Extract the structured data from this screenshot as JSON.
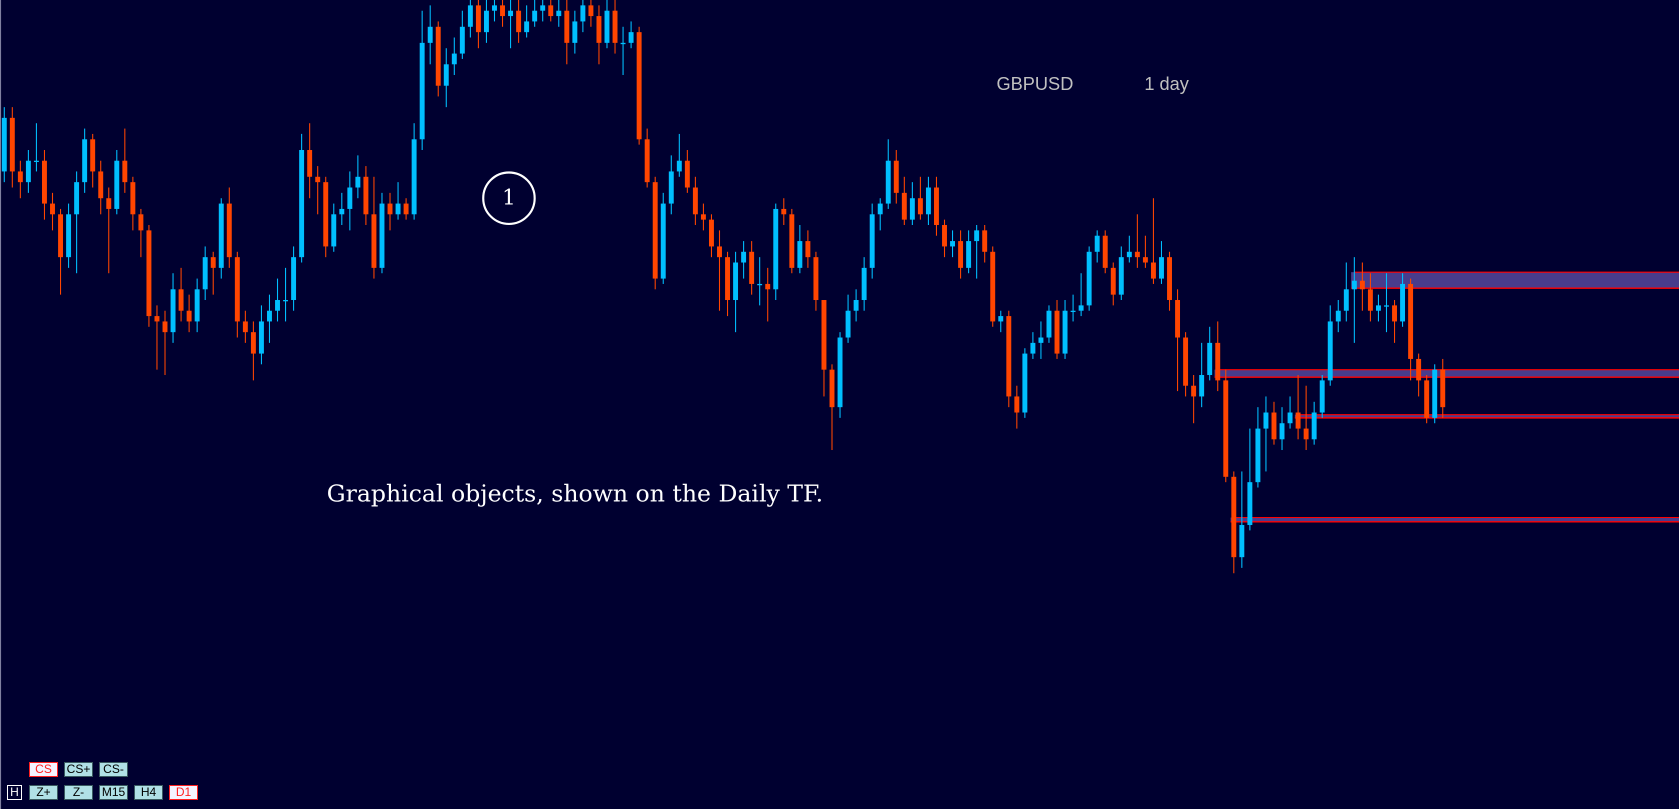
{
  "header": {
    "symbol": "GBPUSD",
    "timeframe": "1 day"
  },
  "annotation": {
    "marker_label": "1",
    "caption": "Graphical objects, shown on the Daily TF."
  },
  "buttons": {
    "row1": [
      {
        "label": "CS",
        "active": true
      },
      {
        "label": "CS+",
        "active": false
      },
      {
        "label": "CS-",
        "active": false
      }
    ],
    "row2": [
      {
        "label": "H",
        "active": false
      },
      {
        "label": "Z+",
        "active": false
      },
      {
        "label": "Z-",
        "active": false
      },
      {
        "label": "M15",
        "active": false
      },
      {
        "label": "H4",
        "active": false
      },
      {
        "label": "D1",
        "active": true
      }
    ]
  },
  "colors": {
    "background": "#000030",
    "bull": "#00bfff",
    "bear": "#ff4500",
    "zone_fill": "#483c8c",
    "zone_line": "#ff0000",
    "text": "#c0c0c0"
  },
  "chart_data": {
    "type": "candlestick",
    "title": "",
    "xlabel": "",
    "ylabel": "",
    "grid": false,
    "ylim": [
      1.3245,
      1.4
    ],
    "candles": [
      [
        1.384,
        1.39,
        1.383,
        1.389
      ],
      [
        1.389,
        1.39,
        1.3825,
        1.384
      ],
      [
        1.384,
        1.385,
        1.3815,
        1.383
      ],
      [
        1.383,
        1.386,
        1.382,
        1.385
      ],
      [
        1.385,
        1.3885,
        1.384,
        1.385
      ],
      [
        1.385,
        1.386,
        1.3795,
        1.381
      ],
      [
        1.381,
        1.382,
        1.3785,
        1.38
      ],
      [
        1.38,
        1.3805,
        1.3725,
        1.376
      ],
      [
        1.376,
        1.381,
        1.375,
        1.38
      ],
      [
        1.38,
        1.384,
        1.3745,
        1.383
      ],
      [
        1.383,
        1.388,
        1.382,
        1.387
      ],
      [
        1.387,
        1.3875,
        1.3825,
        1.384
      ],
      [
        1.384,
        1.385,
        1.38,
        1.3815
      ],
      [
        1.3815,
        1.3825,
        1.3745,
        1.3805
      ],
      [
        1.3805,
        1.386,
        1.38,
        1.385
      ],
      [
        1.385,
        1.388,
        1.382,
        1.383
      ],
      [
        1.383,
        1.3835,
        1.3785,
        1.38
      ],
      [
        1.38,
        1.3805,
        1.376,
        1.3785
      ],
      [
        1.3785,
        1.379,
        1.3695,
        1.3705
      ],
      [
        1.3705,
        1.3715,
        1.3655,
        1.37
      ],
      [
        1.37,
        1.371,
        1.365,
        1.369
      ],
      [
        1.369,
        1.3745,
        1.368,
        1.373
      ],
      [
        1.373,
        1.375,
        1.37,
        1.371
      ],
      [
        1.371,
        1.3725,
        1.369,
        1.37
      ],
      [
        1.37,
        1.374,
        1.369,
        1.373
      ],
      [
        1.373,
        1.377,
        1.372,
        1.376
      ],
      [
        1.376,
        1.3765,
        1.3725,
        1.375
      ],
      [
        1.375,
        1.3815,
        1.374,
        1.381
      ],
      [
        1.381,
        1.3825,
        1.375,
        1.376
      ],
      [
        1.376,
        1.3765,
        1.3685,
        1.37
      ],
      [
        1.37,
        1.371,
        1.368,
        1.369
      ],
      [
        1.369,
        1.37,
        1.3645,
        1.367
      ],
      [
        1.367,
        1.3715,
        1.366,
        1.37
      ],
      [
        1.37,
        1.3725,
        1.368,
        1.371
      ],
      [
        1.371,
        1.374,
        1.37,
        1.372
      ],
      [
        1.372,
        1.375,
        1.37,
        1.372
      ],
      [
        1.372,
        1.377,
        1.371,
        1.376
      ],
      [
        1.376,
        1.3875,
        1.3755,
        1.386
      ],
      [
        1.386,
        1.3885,
        1.3815,
        1.3835
      ],
      [
        1.3835,
        1.3845,
        1.38,
        1.383
      ],
      [
        1.383,
        1.3835,
        1.376,
        1.377
      ],
      [
        1.377,
        1.381,
        1.3765,
        1.38
      ],
      [
        1.38,
        1.382,
        1.379,
        1.3805
      ],
      [
        1.3805,
        1.384,
        1.3785,
        1.3825
      ],
      [
        1.3825,
        1.3855,
        1.3815,
        1.3835
      ],
      [
        1.3835,
        1.3845,
        1.379,
        1.38
      ],
      [
        1.38,
        1.3835,
        1.374,
        1.375
      ],
      [
        1.375,
        1.382,
        1.3745,
        1.381
      ],
      [
        1.381,
        1.382,
        1.3785,
        1.38
      ],
      [
        1.38,
        1.383,
        1.3795,
        1.381
      ],
      [
        1.381,
        1.3815,
        1.3795,
        1.38
      ],
      [
        1.38,
        1.3885,
        1.3795,
        1.387
      ],
      [
        1.387,
        1.399,
        1.386,
        1.396
      ],
      [
        1.396,
        1.3995,
        1.394,
        1.3975
      ],
      [
        1.3975,
        1.398,
        1.391,
        1.392
      ],
      [
        1.392,
        1.3955,
        1.39,
        1.394
      ],
      [
        1.394,
        1.3965,
        1.393,
        1.395
      ],
      [
        1.395,
        1.399,
        1.3945,
        1.3975
      ],
      [
        1.3975,
        1.401,
        1.3965,
        1.3995
      ],
      [
        1.3995,
        1.4,
        1.3955,
        1.397
      ],
      [
        1.397,
        1.4005,
        1.396,
        1.399
      ],
      [
        1.399,
        1.401,
        1.398,
        1.3995
      ],
      [
        1.3995,
        1.4005,
        1.3975,
        1.3985
      ],
      [
        1.3985,
        1.4005,
        1.3955,
        1.399
      ],
      [
        1.399,
        1.4,
        1.396,
        1.397
      ],
      [
        1.397,
        1.3995,
        1.3965,
        1.398
      ],
      [
        1.398,
        1.4005,
        1.3975,
        1.399
      ],
      [
        1.399,
        1.401,
        1.398,
        1.3995
      ],
      [
        1.3995,
        1.4005,
        1.398,
        1.3985
      ],
      [
        1.3985,
        1.4,
        1.3975,
        1.399
      ],
      [
        1.399,
        1.4,
        1.394,
        1.396
      ],
      [
        1.396,
        1.399,
        1.395,
        1.398
      ],
      [
        1.398,
        1.401,
        1.397,
        1.3995
      ],
      [
        1.3995,
        1.4005,
        1.3975,
        1.3985
      ],
      [
        1.3985,
        1.3995,
        1.394,
        1.396
      ],
      [
        1.396,
        1.4005,
        1.3955,
        1.399
      ],
      [
        1.399,
        1.4,
        1.395,
        1.396
      ],
      [
        1.396,
        1.3975,
        1.393,
        1.396
      ],
      [
        1.396,
        1.398,
        1.3955,
        1.397
      ],
      [
        1.397,
        1.3975,
        1.3865,
        1.387
      ],
      [
        1.387,
        1.388,
        1.3825,
        1.383
      ],
      [
        1.383,
        1.3835,
        1.373,
        1.374
      ],
      [
        1.374,
        1.382,
        1.3735,
        1.381
      ],
      [
        1.381,
        1.3855,
        1.38,
        1.384
      ],
      [
        1.384,
        1.3875,
        1.3835,
        1.385
      ],
      [
        1.385,
        1.386,
        1.382,
        1.3825
      ],
      [
        1.3825,
        1.3835,
        1.379,
        1.38
      ],
      [
        1.38,
        1.381,
        1.3785,
        1.3795
      ],
      [
        1.3795,
        1.38,
        1.376,
        1.377
      ],
      [
        1.377,
        1.3785,
        1.371,
        1.376
      ],
      [
        1.376,
        1.3765,
        1.3705,
        1.372
      ],
      [
        1.372,
        1.3765,
        1.369,
        1.3755
      ],
      [
        1.3755,
        1.3775,
        1.374,
        1.3765
      ],
      [
        1.3765,
        1.3775,
        1.3725,
        1.3735
      ],
      [
        1.3735,
        1.376,
        1.3715,
        1.3735
      ],
      [
        1.3735,
        1.375,
        1.37,
        1.373
      ],
      [
        1.373,
        1.381,
        1.372,
        1.3805
      ],
      [
        1.3805,
        1.3815,
        1.379,
        1.38
      ],
      [
        1.38,
        1.3805,
        1.3745,
        1.375
      ],
      [
        1.375,
        1.379,
        1.3745,
        1.3775
      ],
      [
        1.3775,
        1.3785,
        1.375,
        1.376
      ],
      [
        1.376,
        1.3765,
        1.371,
        1.372
      ],
      [
        1.372,
        1.372,
        1.363,
        1.3655
      ],
      [
        1.3655,
        1.366,
        1.358,
        1.362
      ],
      [
        1.362,
        1.369,
        1.361,
        1.3685
      ],
      [
        1.3685,
        1.3725,
        1.368,
        1.371
      ],
      [
        1.371,
        1.373,
        1.37,
        1.372
      ],
      [
        1.372,
        1.376,
        1.371,
        1.375
      ],
      [
        1.375,
        1.381,
        1.374,
        1.38
      ],
      [
        1.38,
        1.3815,
        1.3785,
        1.381
      ],
      [
        1.381,
        1.387,
        1.3805,
        1.385
      ],
      [
        1.385,
        1.386,
        1.381,
        1.382
      ],
      [
        1.382,
        1.3835,
        1.379,
        1.3795
      ],
      [
        1.3795,
        1.383,
        1.379,
        1.3815
      ],
      [
        1.3815,
        1.3835,
        1.3795,
        1.38
      ],
      [
        1.38,
        1.3835,
        1.379,
        1.3825
      ],
      [
        1.3825,
        1.3835,
        1.378,
        1.379
      ],
      [
        1.379,
        1.3795,
        1.376,
        1.377
      ],
      [
        1.377,
        1.3785,
        1.376,
        1.3775
      ],
      [
        1.3775,
        1.3785,
        1.374,
        1.375
      ],
      [
        1.375,
        1.3785,
        1.3745,
        1.3775
      ],
      [
        1.3775,
        1.379,
        1.374,
        1.3785
      ],
      [
        1.3785,
        1.379,
        1.3755,
        1.3765
      ],
      [
        1.3765,
        1.377,
        1.3695,
        1.37
      ],
      [
        1.37,
        1.371,
        1.369,
        1.3705
      ],
      [
        1.3705,
        1.371,
        1.362,
        1.363
      ],
      [
        1.363,
        1.364,
        1.36,
        1.3615
      ],
      [
        1.3615,
        1.3675,
        1.361,
        1.367
      ],
      [
        1.367,
        1.369,
        1.3665,
        1.368
      ],
      [
        1.368,
        1.37,
        1.3665,
        1.3685
      ],
      [
        1.3685,
        1.3715,
        1.368,
        1.371
      ],
      [
        1.371,
        1.372,
        1.3665,
        1.367
      ],
      [
        1.367,
        1.372,
        1.3665,
        1.371
      ],
      [
        1.371,
        1.3725,
        1.37,
        1.371
      ],
      [
        1.371,
        1.3745,
        1.3705,
        1.3715
      ],
      [
        1.3715,
        1.377,
        1.371,
        1.3765
      ],
      [
        1.3765,
        1.3785,
        1.3755,
        1.378
      ],
      [
        1.378,
        1.3785,
        1.3745,
        1.375
      ],
      [
        1.375,
        1.3755,
        1.3715,
        1.3725
      ],
      [
        1.3725,
        1.377,
        1.372,
        1.376
      ],
      [
        1.376,
        1.378,
        1.3755,
        1.3765
      ],
      [
        1.3765,
        1.38,
        1.375,
        1.376
      ],
      [
        1.376,
        1.378,
        1.375,
        1.3755
      ],
      [
        1.3755,
        1.3815,
        1.3735,
        1.374
      ],
      [
        1.374,
        1.3775,
        1.3735,
        1.376
      ],
      [
        1.376,
        1.3765,
        1.371,
        1.372
      ],
      [
        1.372,
        1.373,
        1.3635,
        1.3685
      ],
      [
        1.3685,
        1.369,
        1.363,
        1.364
      ],
      [
        1.364,
        1.365,
        1.3605,
        1.363
      ],
      [
        1.363,
        1.368,
        1.362,
        1.365
      ],
      [
        1.365,
        1.3695,
        1.3645,
        1.368
      ],
      [
        1.368,
        1.37,
        1.3635,
        1.3645
      ],
      [
        1.3645,
        1.3655,
        1.355,
        1.3555
      ],
      [
        1.3555,
        1.356,
        1.3465,
        1.348
      ],
      [
        1.348,
        1.356,
        1.347,
        1.351
      ],
      [
        1.351,
        1.36,
        1.3505,
        1.355
      ],
      [
        1.355,
        1.362,
        1.3545,
        1.36
      ],
      [
        1.36,
        1.363,
        1.356,
        1.3615
      ],
      [
        1.3615,
        1.3625,
        1.3585,
        1.359
      ],
      [
        1.359,
        1.362,
        1.358,
        1.3605
      ],
      [
        1.3605,
        1.363,
        1.36,
        1.3615
      ],
      [
        1.3615,
        1.365,
        1.359,
        1.36
      ],
      [
        1.36,
        1.364,
        1.358,
        1.359
      ],
      [
        1.359,
        1.3625,
        1.3585,
        1.3615
      ],
      [
        1.3615,
        1.365,
        1.361,
        1.3645
      ],
      [
        1.3645,
        1.3715,
        1.364,
        1.37
      ],
      [
        1.37,
        1.372,
        1.369,
        1.371
      ],
      [
        1.371,
        1.3755,
        1.37,
        1.373
      ],
      [
        1.373,
        1.376,
        1.368,
        1.3738
      ],
      [
        1.3738,
        1.3755,
        1.371,
        1.373
      ],
      [
        1.373,
        1.3745,
        1.37,
        1.371
      ],
      [
        1.371,
        1.3725,
        1.37,
        1.3715
      ],
      [
        1.3715,
        1.3745,
        1.369,
        1.3715
      ],
      [
        1.3715,
        1.372,
        1.368,
        1.37
      ],
      [
        1.37,
        1.3745,
        1.3695,
        1.3735
      ],
      [
        1.3735,
        1.374,
        1.3645,
        1.3665
      ],
      [
        1.3665,
        1.367,
        1.363,
        1.3645
      ],
      [
        1.3645,
        1.365,
        1.3605,
        1.361
      ],
      [
        1.361,
        1.366,
        1.3605,
        1.3655
      ],
      [
        1.3655,
        1.3665,
        1.361,
        1.362
      ]
    ],
    "zones": [
      {
        "top": 1.3746,
        "bottom": 1.3731,
        "start_index": 168
      },
      {
        "top": 1.3655,
        "bottom": 1.3648,
        "start_index": 151
      },
      {
        "top": 1.3613,
        "bottom": 1.361,
        "start_index": 161
      },
      {
        "top": 1.3517,
        "bottom": 1.3513,
        "start_index": 153
      }
    ]
  }
}
